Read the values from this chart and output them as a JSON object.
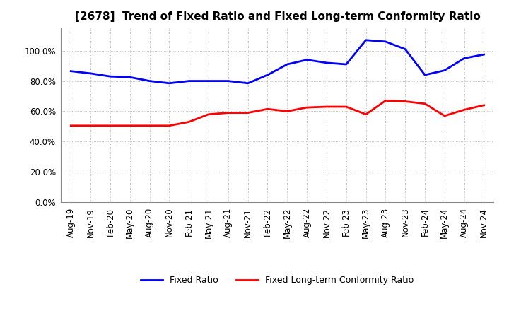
{
  "title": "[2678]  Trend of Fixed Ratio and Fixed Long-term Conformity Ratio",
  "x_labels": [
    "Aug-19",
    "Nov-19",
    "Feb-20",
    "May-20",
    "Aug-20",
    "Nov-20",
    "Feb-21",
    "May-21",
    "Aug-21",
    "Nov-21",
    "Feb-22",
    "May-22",
    "Aug-22",
    "Nov-22",
    "Feb-23",
    "May-23",
    "Aug-23",
    "Nov-23",
    "Feb-24",
    "May-24",
    "Aug-24",
    "Nov-24"
  ],
  "fixed_ratio": [
    86.5,
    85.0,
    83.0,
    82.5,
    80.0,
    78.5,
    80.0,
    80.0,
    80.0,
    78.5,
    84.0,
    91.0,
    94.0,
    92.0,
    91.0,
    107.0,
    106.0,
    101.0,
    84.0,
    87.0,
    95.0,
    97.5
  ],
  "fixed_lt_ratio": [
    50.5,
    50.5,
    50.5,
    50.5,
    50.5,
    50.5,
    53.0,
    58.0,
    59.0,
    59.0,
    61.5,
    60.0,
    62.5,
    63.0,
    63.0,
    58.0,
    67.0,
    66.5,
    65.0,
    57.0,
    61.0,
    64.0
  ],
  "fixed_ratio_color": "#0000FF",
  "fixed_lt_ratio_color": "#FF0000",
  "ylim": [
    0,
    115
  ],
  "yticks": [
    0,
    20,
    40,
    60,
    80,
    100
  ],
  "background_color": "#FFFFFF",
  "grid_color": "#AAAAAA",
  "legend_labels": [
    "Fixed Ratio",
    "Fixed Long-term Conformity Ratio"
  ],
  "title_fontsize": 11,
  "tick_fontsize": 8.5
}
